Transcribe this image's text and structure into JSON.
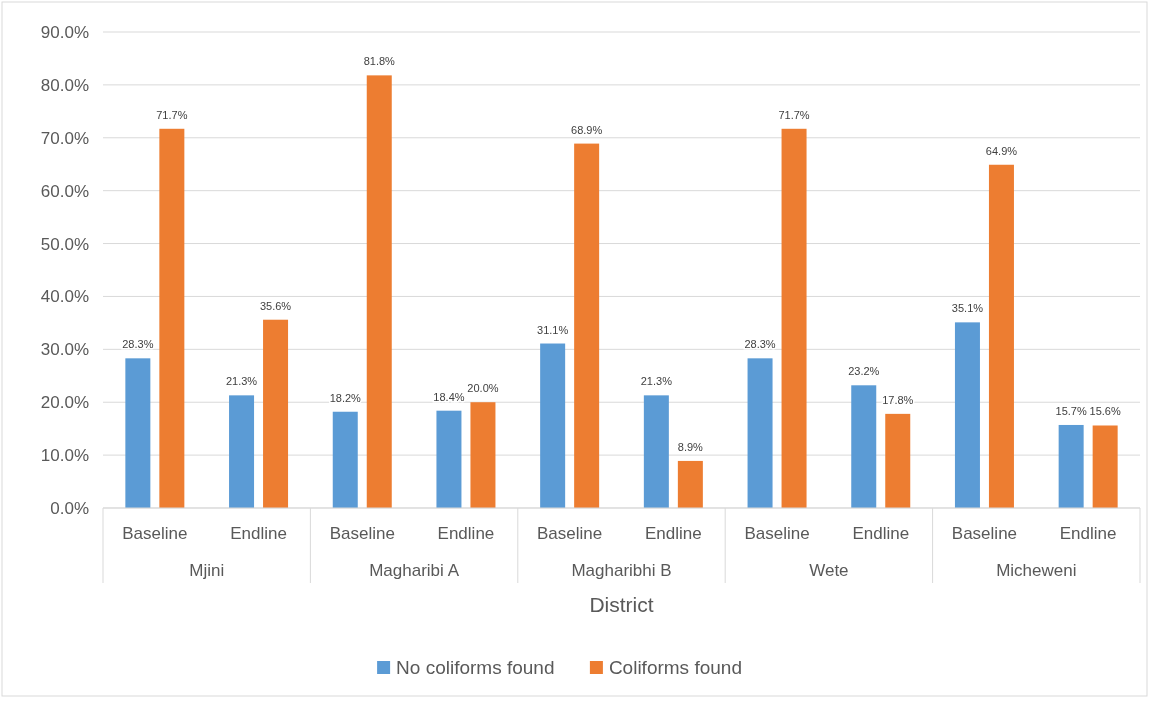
{
  "chart_data": {
    "type": "bar",
    "xlabel": "District",
    "categories": [
      "Baseline",
      "Endline",
      "Baseline",
      "Endline",
      "Baseline",
      "Endline",
      "Baseline",
      "Endline",
      "Baseline",
      "Endline"
    ],
    "annotations": [
      "Mjini",
      "Magharibi A",
      "Magharibhi B",
      "Wete",
      "Micheweni"
    ],
    "series": [
      {
        "name": "No coliforms found",
        "color": "#5b9bd5",
        "values": [
          28.3,
          21.3,
          18.2,
          18.4,
          31.1,
          21.3,
          28.3,
          23.2,
          35.1,
          15.7
        ],
        "value_labels": [
          "28.3%",
          "21.3%",
          "18.2%",
          "18.4%",
          "31.1%",
          "21.3%",
          "28.3%",
          "23.2%",
          "35.1%",
          "15.7%"
        ]
      },
      {
        "name": "Coliforms found",
        "color": "#ed7d31",
        "values": [
          71.7,
          35.6,
          81.8,
          20.0,
          68.9,
          8.9,
          71.7,
          17.8,
          64.9,
          15.6
        ],
        "value_labels": [
          "71.7%",
          "35.6%",
          "81.8%",
          "20.0%",
          "68.9%",
          "8.9%",
          "71.7%",
          "17.8%",
          "64.9%",
          "15.6%"
        ]
      }
    ],
    "ylim": [
      0,
      90
    ],
    "yticks": [
      {
        "value": 0,
        "label": "0.0%"
      },
      {
        "value": 10,
        "label": "10.0%"
      },
      {
        "value": 20,
        "label": "20.0%"
      },
      {
        "value": 30,
        "label": "30.0%"
      },
      {
        "value": 40,
        "label": "40.0%"
      },
      {
        "value": 50,
        "label": "50.0%"
      },
      {
        "value": 60,
        "label": "60.0%"
      },
      {
        "value": 70,
        "label": "70.0%"
      },
      {
        "value": 80,
        "label": "80.0%"
      },
      {
        "value": 90,
        "label": "90.0%"
      }
    ],
    "grid": "y",
    "legend": "bottom"
  }
}
